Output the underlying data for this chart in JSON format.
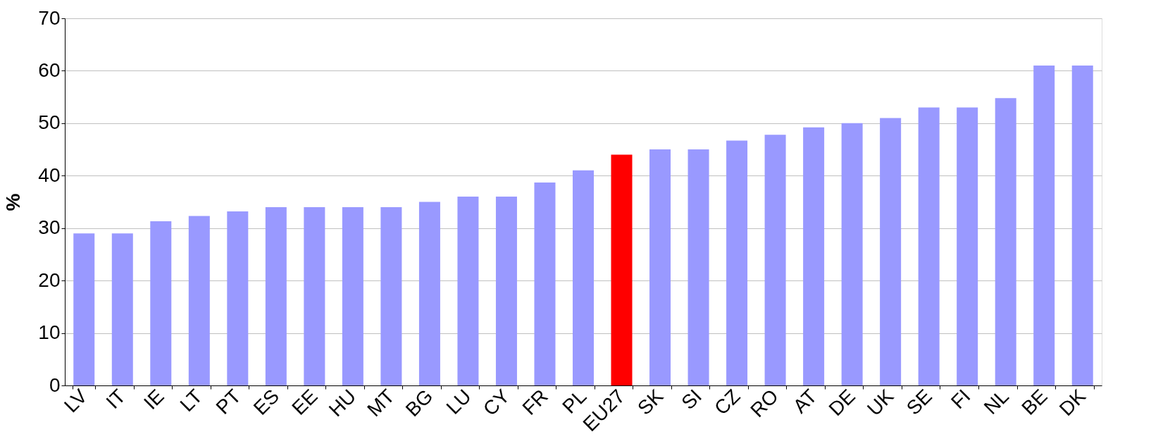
{
  "chart_data": {
    "type": "bar",
    "ylabel": "%",
    "categories": [
      "LV",
      "IT",
      "IE",
      "LT",
      "PT",
      "ES",
      "EE",
      "HU",
      "MT",
      "BG",
      "LU",
      "CY",
      "FR",
      "PL",
      "EU27",
      "SK",
      "SI",
      "CZ",
      "RO",
      "AT",
      "DE",
      "UK",
      "SE",
      "FI",
      "NL",
      "BE",
      "DK"
    ],
    "values": [
      29,
      29,
      31.3,
      32.3,
      33.2,
      34,
      34,
      34,
      34,
      35,
      36,
      36,
      38.7,
      41,
      44,
      45,
      45,
      46.7,
      47.8,
      49.2,
      50,
      51,
      53,
      53,
      54.8,
      61,
      61
    ],
    "colors": [
      "#9999ff",
      "#9999ff",
      "#9999ff",
      "#9999ff",
      "#9999ff",
      "#9999ff",
      "#9999ff",
      "#9999ff",
      "#9999ff",
      "#9999ff",
      "#9999ff",
      "#9999ff",
      "#9999ff",
      "#9999ff",
      "#ff0000",
      "#9999ff",
      "#9999ff",
      "#9999ff",
      "#9999ff",
      "#9999ff",
      "#9999ff",
      "#9999ff",
      "#9999ff",
      "#9999ff",
      "#9999ff",
      "#9999ff",
      "#9999ff"
    ],
    "ylim": [
      0,
      70
    ],
    "yticks": [
      0,
      10,
      20,
      30,
      40,
      50,
      60,
      70
    ],
    "grid": "y"
  }
}
